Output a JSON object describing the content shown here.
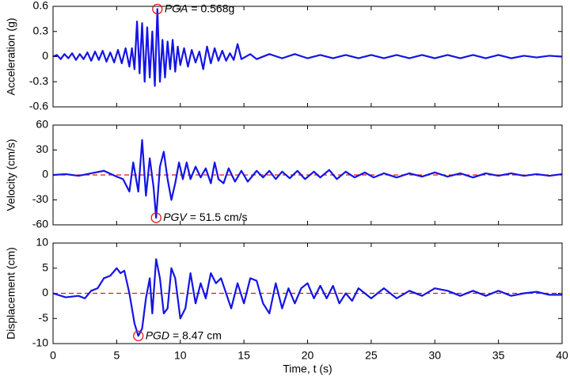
{
  "chart_data": [
    {
      "type": "line",
      "ylabel": "Acceleration (g)",
      "xlim": [
        0,
        40
      ],
      "xticks": [
        0,
        5,
        10,
        15,
        20,
        25,
        30,
        35,
        40
      ],
      "ylim": [
        -0.6,
        0.6
      ],
      "yticks": [
        -0.6,
        -0.3,
        0,
        0.3,
        0.6
      ],
      "zero_line": false,
      "x": [
        0,
        0.3,
        0.6,
        0.9,
        1.2,
        1.5,
        1.8,
        2.1,
        2.4,
        2.7,
        3.0,
        3.3,
        3.6,
        3.9,
        4.2,
        4.5,
        4.8,
        5.1,
        5.4,
        5.7,
        6.0,
        6.2,
        6.4,
        6.6,
        6.8,
        7.0,
        7.2,
        7.4,
        7.6,
        7.8,
        8.0,
        8.2,
        8.4,
        8.6,
        8.8,
        9.0,
        9.2,
        9.4,
        9.6,
        9.8,
        10.0,
        10.3,
        10.6,
        10.9,
        11.2,
        11.5,
        11.8,
        12.1,
        12.4,
        12.7,
        13.0,
        13.3,
        13.6,
        13.9,
        14.2,
        14.5,
        14.8,
        15.5,
        16,
        17,
        18,
        19,
        20,
        21,
        22,
        23,
        24,
        25,
        26,
        27,
        28,
        29,
        30,
        31,
        32,
        33,
        34,
        35,
        36,
        37,
        38,
        39,
        40
      ],
      "series": [
        {
          "color": "#1414e6",
          "values": [
            0,
            0.02,
            -0.03,
            0.03,
            -0.02,
            0.04,
            -0.04,
            0.03,
            -0.03,
            0.05,
            -0.05,
            0.06,
            -0.04,
            0.07,
            -0.06,
            0.05,
            -0.07,
            0.08,
            -0.08,
            0.1,
            -0.12,
            0.1,
            -0.15,
            0.42,
            -0.2,
            0.4,
            -0.3,
            0.35,
            -0.25,
            0.3,
            -0.35,
            0.568,
            -0.3,
            0.2,
            -0.25,
            0.18,
            -0.15,
            0.2,
            -0.18,
            0.12,
            -0.1,
            0.1,
            -0.12,
            0.08,
            -0.07,
            0.06,
            -0.15,
            0.12,
            -0.08,
            0.1,
            -0.05,
            0.07,
            -0.05,
            0.04,
            -0.04,
            0.15,
            -0.03,
            0.03,
            -0.03,
            0.03,
            -0.02,
            0.03,
            -0.02,
            0.02,
            -0.02,
            0.02,
            -0.02,
            0.02,
            -0.02,
            0.02,
            -0.02,
            0.02,
            -0.02,
            0.02,
            -0.02,
            0.02,
            -0.02,
            0.02,
            -0.02,
            0.01,
            -0.01,
            0.01,
            0
          ]
        }
      ],
      "annotation": {
        "x": 8.2,
        "y": 0.568,
        "label": "PGA",
        "text": "= 0.568g",
        "color": "#e61414"
      }
    },
    {
      "type": "line",
      "ylabel": "Velocity (cm/s)",
      "xlim": [
        0,
        40
      ],
      "xticks": [
        0,
        5,
        10,
        15,
        20,
        25,
        30,
        35,
        40
      ],
      "ylim": [
        -60,
        60
      ],
      "yticks": [
        -60,
        -30,
        0,
        30,
        60
      ],
      "zero_line": true,
      "x": [
        0,
        1,
        2,
        3,
        4,
        5,
        5.5,
        6,
        6.3,
        6.7,
        7,
        7.3,
        7.6,
        7.9,
        8.1,
        8.4,
        8.7,
        9,
        9.3,
        9.6,
        9.9,
        10.2,
        10.5,
        10.8,
        11.2,
        11.6,
        12,
        12.4,
        12.7,
        13,
        13.4,
        13.8,
        14.3,
        14.8,
        15.3,
        16,
        16.5,
        17,
        17.5,
        18,
        18.6,
        19.2,
        19.8,
        20.5,
        21,
        21.7,
        22.3,
        23,
        23.7,
        24.5,
        25.2,
        26,
        27,
        28,
        29,
        30,
        31,
        32,
        33,
        34,
        35,
        36,
        37,
        38,
        39,
        40
      ],
      "series": [
        {
          "color": "#1414e6",
          "values": [
            0,
            1,
            -1,
            2,
            5,
            -2,
            -5,
            -20,
            15,
            -20,
            42,
            -25,
            20,
            -15,
            -51.5,
            10,
            28,
            -5,
            -30,
            -10,
            15,
            -5,
            15,
            -5,
            10,
            -3,
            8,
            -10,
            15,
            -5,
            -10,
            8,
            -8,
            5,
            -8,
            5,
            -3,
            5,
            -5,
            4,
            -4,
            5,
            -5,
            4,
            -3,
            6,
            -5,
            4,
            -3,
            3,
            -3,
            2,
            -3,
            2,
            -2,
            3,
            -2,
            2,
            -3,
            2,
            -1,
            2,
            -1,
            1,
            -1,
            1
          ]
        }
      ],
      "annotation": {
        "x": 8.1,
        "y": -51.5,
        "label": "PGV",
        "text": "= 51.5 cm/s",
        "color": "#e61414"
      }
    },
    {
      "type": "line",
      "ylabel": "Displacement (cm)",
      "xlabel": "Time, t (s)",
      "xlim": [
        0,
        40
      ],
      "xticks": [
        0,
        5,
        10,
        15,
        20,
        25,
        30,
        35,
        40
      ],
      "ylim": [
        -10,
        10
      ],
      "yticks": [
        -10,
        -5,
        0,
        5,
        10
      ],
      "zero_line": true,
      "x": [
        0,
        1,
        2,
        2.5,
        3,
        3.5,
        4,
        4.5,
        5,
        5.3,
        5.6,
        6,
        6.4,
        6.7,
        7,
        7.3,
        7.6,
        7.8,
        8.1,
        8.4,
        8.7,
        9,
        9.3,
        9.6,
        10,
        10.4,
        10.8,
        11.2,
        11.6,
        12,
        12.4,
        12.8,
        13.2,
        13.6,
        14,
        14.5,
        15,
        15.5,
        16,
        16.5,
        17,
        17.5,
        18,
        18.5,
        19,
        19.5,
        20,
        20.5,
        21,
        21.5,
        22,
        22.5,
        23,
        23.5,
        24,
        25,
        26,
        27,
        28,
        29,
        30,
        31,
        32,
        33,
        34,
        35,
        36,
        37,
        38,
        39,
        40
      ],
      "series": [
        {
          "color": "#1414e6",
          "values": [
            0,
            -0.8,
            -0.5,
            -1,
            0.5,
            1,
            3,
            3.5,
            5,
            4,
            4.5,
            0,
            -6,
            -8.47,
            -7,
            -1,
            3,
            -4,
            6.8,
            3,
            -4,
            -3,
            5,
            3,
            -5,
            -3,
            4,
            -2,
            2,
            -1,
            4,
            2,
            3,
            0,
            -3,
            2,
            -2,
            3,
            2.5,
            -2,
            -4,
            2,
            -3,
            1,
            -2,
            1,
            2,
            -1,
            1.5,
            -1,
            1.5,
            -2,
            0,
            -1.5,
            1,
            -1,
            1,
            -1,
            0.5,
            -0.5,
            1,
            0.5,
            -0.5,
            0.5,
            -0.5,
            0.5,
            -0.5,
            0,
            0.3,
            -0.3,
            -0.3
          ]
        }
      ],
      "annotation": {
        "x": 6.7,
        "y": -8.47,
        "label": "PGD",
        "text": "= 8.47 cm",
        "color": "#e61414"
      }
    }
  ]
}
